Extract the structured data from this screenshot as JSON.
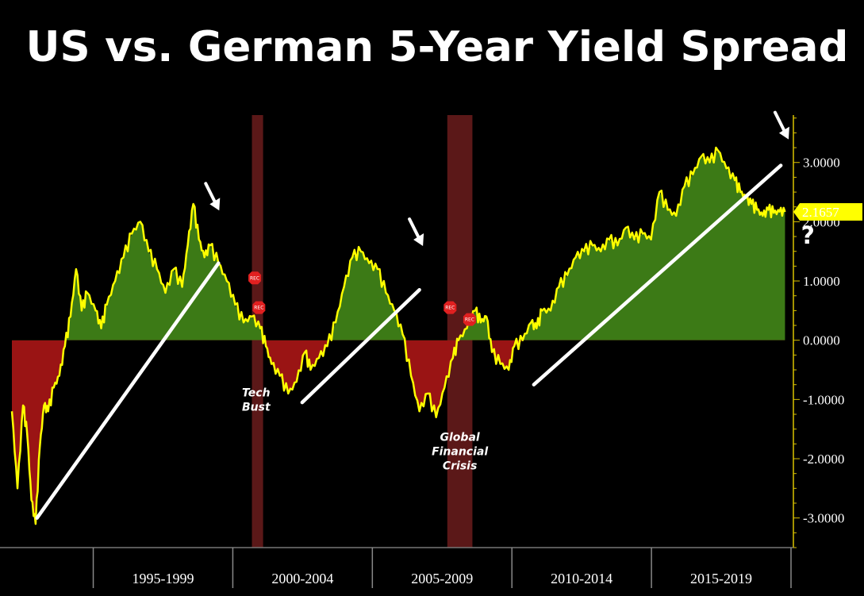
{
  "chart_data": {
    "type": "area",
    "title": "US vs. German 5-Year Yield Spread",
    "x_range": [
      1992.0,
      2020.0
    ],
    "ylim": [
      -3.5,
      3.8
    ],
    "yticks": [
      "3.0000",
      "2.0000",
      "1.0000",
      "0.0000",
      "-1.0000",
      "-2.0000",
      "-3.0000"
    ],
    "ytick_values": [
      3,
      2,
      1,
      0,
      -1,
      -2,
      -3
    ],
    "x_categories": [
      "1995-1999",
      "2000-2004",
      "2005-2009",
      "2010-2014",
      "2015-2019"
    ],
    "x_category_centers": [
      1997.5,
      2002.5,
      2007.5,
      2012.5,
      2017.5
    ],
    "x_separators": [
      1995,
      2000,
      2005,
      2010,
      2015,
      2020
    ],
    "last_value_label": "2.1657",
    "series": [
      {
        "color": "#ffff00",
        "x": [
          1992.0,
          1992.2,
          1992.4,
          1992.55,
          1992.7,
          1992.85,
          1993.0,
          1993.15,
          1993.3,
          1993.5,
          1993.7,
          1993.9,
          1994.1,
          1994.3,
          1994.5,
          1994.7,
          1995.0,
          1995.2,
          1995.4,
          1995.7,
          1996.0,
          1996.3,
          1996.6,
          1996.9,
          1997.2,
          1997.5,
          1997.8,
          1998.1,
          1998.3,
          1998.5,
          1998.7,
          1998.9,
          1999.1,
          1999.4,
          1999.7,
          2000.0,
          2000.3,
          2000.6,
          2000.9,
          2001.1,
          2001.3,
          2001.6,
          2001.9,
          2002.2,
          2002.5,
          2002.7,
          2003.0,
          2003.3,
          2003.6,
          2003.9,
          2004.2,
          2004.5,
          2004.8,
          2005.1,
          2005.4,
          2005.7,
          2006.0,
          2006.3,
          2006.6,
          2006.9,
          2007.2,
          2007.5,
          2007.8,
          2008.0,
          2008.3,
          2008.6,
          2008.8,
          2009.0,
          2009.2,
          2009.5,
          2009.8,
          2010.0,
          2010.3,
          2010.6,
          2010.8,
          2011.0,
          2011.3,
          2011.6,
          2011.9,
          2012.2,
          2012.5,
          2012.8,
          2013.1,
          2013.4,
          2013.7,
          2014.0,
          2014.3,
          2014.6,
          2014.9,
          2015.2,
          2015.5,
          2015.8,
          2016.1,
          2016.4,
          2016.7,
          2017.0,
          2017.3,
          2017.6,
          2017.9,
          2018.1,
          2018.3,
          2018.5,
          2018.7,
          2018.9,
          2019.1,
          2019.3,
          2019.5,
          2019.7
        ],
        "values": [
          -1.2,
          -2.5,
          -1.1,
          -1.6,
          -2.7,
          -3.1,
          -1.8,
          -1.1,
          -1.2,
          -0.8,
          -0.6,
          -0.1,
          0.4,
          1.2,
          0.5,
          0.8,
          0.5,
          0.2,
          0.6,
          1.0,
          1.4,
          1.8,
          2.0,
          1.5,
          1.2,
          0.8,
          1.2,
          0.9,
          1.6,
          2.3,
          1.7,
          1.4,
          1.6,
          1.3,
          1.0,
          0.6,
          0.3,
          0.4,
          0.2,
          -0.1,
          -0.4,
          -0.6,
          -0.9,
          -0.7,
          -0.2,
          -0.5,
          -0.3,
          -0.1,
          0.3,
          0.9,
          1.4,
          1.5,
          1.3,
          1.2,
          0.8,
          0.5,
          0.1,
          -0.6,
          -1.2,
          -0.9,
          -1.3,
          -0.8,
          -0.3,
          0.0,
          0.2,
          0.5,
          0.3,
          0.4,
          -0.2,
          -0.4,
          -0.5,
          -0.1,
          0.0,
          0.3,
          0.2,
          0.5,
          0.5,
          0.9,
          1.1,
          1.4,
          1.5,
          1.6,
          1.5,
          1.7,
          1.6,
          1.9,
          1.7,
          1.8,
          1.7,
          2.5,
          2.2,
          2.1,
          2.6,
          2.8,
          3.1,
          3.0,
          3.2,
          2.9,
          2.7,
          2.5,
          2.4,
          2.3,
          2.2,
          2.1,
          2.2,
          2.15,
          2.17,
          2.1657
        ]
      }
    ],
    "trendlines": [
      {
        "x": [
          1992.9,
          1999.4
        ],
        "y": [
          -3.0,
          1.3
        ]
      },
      {
        "x": [
          2002.4,
          2006.6
        ],
        "y": [
          -1.05,
          0.85
        ]
      },
      {
        "x": [
          2010.7,
          2019.55
        ],
        "y": [
          -0.75,
          2.95
        ]
      }
    ],
    "recession_bands": [
      [
        2000.6,
        2001.0
      ],
      [
        2007.6,
        2008.5
      ]
    ],
    "annotations": [
      {
        "lines": [
          "Tech",
          "Bust"
        ],
        "x": 2000.75,
        "y": -0.95
      },
      {
        "lines": [
          "Global",
          "Financial",
          "Crisis"
        ],
        "x": 2008.05,
        "y": -1.7
      }
    ],
    "arrows": [
      {
        "x": 1999.2,
        "y": 2.35
      },
      {
        "x": 2006.5,
        "y": 1.75
      },
      {
        "x": 2019.6,
        "y": 3.55
      }
    ],
    "rec_markers": [
      {
        "x": 2000.7,
        "y": 1.05
      },
      {
        "x": 2000.85,
        "y": 0.55
      },
      {
        "x": 2007.7,
        "y": 0.55
      },
      {
        "x": 2008.4,
        "y": 0.35
      }
    ],
    "rec_label": "REC",
    "question_mark": "?",
    "colors": {
      "line": "#ffff00",
      "positive_fill": "#3c7a16",
      "negative_fill": "#9a1414",
      "trendline": "#ffffff",
      "recession": "#6b1c1c",
      "axis": "#d9c200",
      "background": "#000000"
    }
  }
}
